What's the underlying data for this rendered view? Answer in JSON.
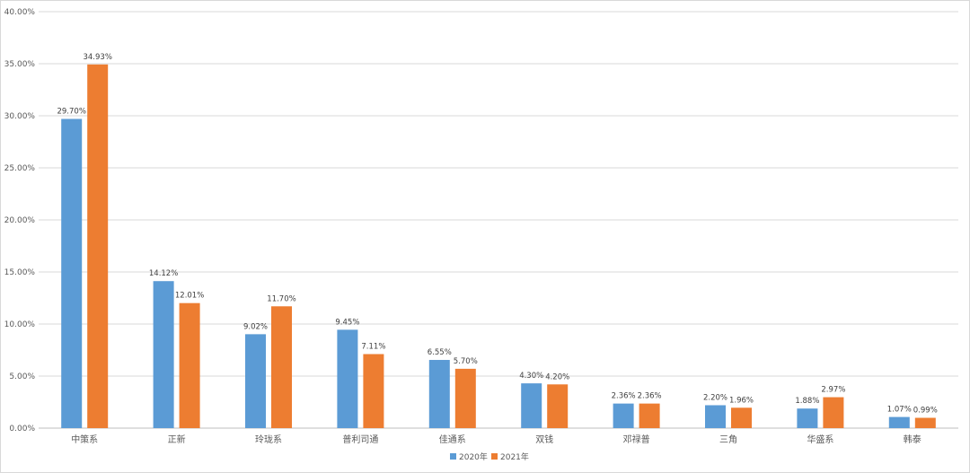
{
  "chart_data": {
    "type": "bar",
    "categories": [
      "中策系",
      "正新",
      "玲珑系",
      "普利司通",
      "佳通系",
      "双钱",
      "邓禄普",
      "三角",
      "华盛系",
      "韩泰"
    ],
    "series": [
      {
        "name": "2020年",
        "color": "#5b9bd5",
        "values": [
          29.7,
          14.12,
          9.02,
          9.45,
          6.55,
          4.3,
          2.36,
          2.2,
          1.88,
          1.07
        ],
        "labels": [
          "29.70%",
          "14.12%",
          "9.02%",
          "9.45%",
          "6.55%",
          "4.30%",
          "2.36%",
          "2.20%",
          "1.88%",
          "1.07%"
        ]
      },
      {
        "name": "2021年",
        "color": "#ed7d31",
        "values": [
          34.93,
          12.01,
          11.7,
          7.11,
          5.7,
          4.2,
          2.36,
          1.96,
          2.97,
          0.99
        ],
        "labels": [
          "34.93%",
          "12.01%",
          "11.70%",
          "7.11%",
          "5.70%",
          "4.20%",
          "2.36%",
          "1.96%",
          "2.97%",
          "0.99%"
        ]
      }
    ],
    "ylim": [
      0,
      40
    ],
    "yticks": [
      0,
      5,
      10,
      15,
      20,
      25,
      30,
      35,
      40
    ],
    "ytick_labels": [
      "0.00%",
      "5.00%",
      "10.00%",
      "15.00%",
      "20.00%",
      "25.00%",
      "30.00%",
      "35.00%",
      "40.00%"
    ],
    "grid": true,
    "legend_position": "bottom-center",
    "title": "",
    "xlabel": "",
    "ylabel": ""
  }
}
